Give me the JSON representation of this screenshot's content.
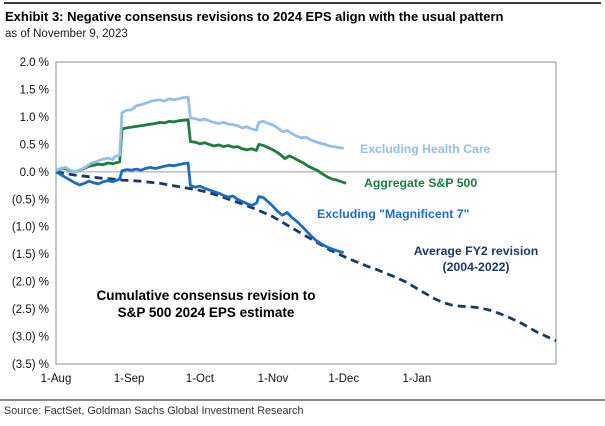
{
  "header": {
    "title": "Exhibit 3: Negative consensus revisions to 2024 EPS align with the usual pattern",
    "subtitle": "as of November 9, 2023"
  },
  "annotation": {
    "line1": "Cumulative consensus revision to",
    "line2": "S&P 500 2024 EPS estimate"
  },
  "legend": {
    "health_care": "Excluding Health Care",
    "aggregate": "Aggregate S&P 500",
    "mag7": "Excluding \"Magnificent 7\"",
    "avg_fy2_line1": "Average FY2 revision",
    "avg_fy2_line2": "(2004-2022)"
  },
  "footer": {
    "source": "Source: FactSet, Goldman Sachs Global Investment Research"
  },
  "colors": {
    "health_care": "#94bfe6",
    "aggregate": "#1e7b3d",
    "mag7": "#1b6cc2",
    "avg_fy2": "#1a3a63",
    "zero_line": "#9d9d9d",
    "plot_border": "#a3a3a3",
    "axis_text": "#111111"
  },
  "chart_data": {
    "type": "line",
    "title": "Cumulative consensus revision to S&P 500 2024 EPS estimate",
    "xlabel": "",
    "ylabel": "%",
    "grid": "zero line only",
    "legend_position": "inline right labels",
    "x_axis": {
      "unit": "days since 1-Aug-2023",
      "range": [
        0,
        212
      ],
      "ticks": [
        {
          "d": 0,
          "label": "1-Aug"
        },
        {
          "d": 31,
          "label": "1-Sep"
        },
        {
          "d": 61,
          "label": "1-Oct"
        },
        {
          "d": 92,
          "label": "1-Nov"
        },
        {
          "d": 122,
          "label": "1-Dec"
        },
        {
          "d": 153,
          "label": "1-Jan"
        }
      ]
    },
    "y_axis": {
      "unit": "%",
      "range": [
        -3.5,
        2.0
      ],
      "ticks": [
        {
          "v": 2.0,
          "label": "2.0 %"
        },
        {
          "v": 1.5,
          "label": "1.5 %"
        },
        {
          "v": 1.0,
          "label": "1.0 %"
        },
        {
          "v": 0.5,
          "label": "0.5 %"
        },
        {
          "v": 0.0,
          "label": "0.0 %"
        },
        {
          "v": -0.5,
          "label": "(0.5) %"
        },
        {
          "v": -1.0,
          "label": "(1.0) %"
        },
        {
          "v": -1.5,
          "label": "(1.5) %"
        },
        {
          "v": -2.0,
          "label": "(2.0) %"
        },
        {
          "v": -2.5,
          "label": "(2.5) %"
        },
        {
          "v": -3.0,
          "label": "(3.0) %"
        },
        {
          "v": -3.5,
          "label": "(3.5) %"
        }
      ]
    },
    "series": [
      {
        "name": "Average FY2 revision (2004-2022)",
        "style": "dashed",
        "color": "#1a3a63",
        "points": [
          [
            0,
            0.0
          ],
          [
            4,
            -0.03
          ],
          [
            8,
            -0.06
          ],
          [
            12,
            -0.08
          ],
          [
            16,
            -0.1
          ],
          [
            20,
            -0.12
          ],
          [
            24,
            -0.13
          ],
          [
            28,
            -0.15
          ],
          [
            32,
            -0.16
          ],
          [
            36,
            -0.17
          ],
          [
            40,
            -0.19
          ],
          [
            44,
            -0.21
          ],
          [
            48,
            -0.24
          ],
          [
            52,
            -0.27
          ],
          [
            56,
            -0.3
          ],
          [
            60,
            -0.33
          ],
          [
            64,
            -0.37
          ],
          [
            68,
            -0.42
          ],
          [
            72,
            -0.48
          ],
          [
            76,
            -0.54
          ],
          [
            80,
            -0.6
          ],
          [
            84,
            -0.67
          ],
          [
            88,
            -0.74
          ],
          [
            92,
            -0.82
          ],
          [
            96,
            -0.92
          ],
          [
            100,
            -1.02
          ],
          [
            104,
            -1.12
          ],
          [
            108,
            -1.22
          ],
          [
            112,
            -1.32
          ],
          [
            116,
            -1.42
          ],
          [
            120,
            -1.5
          ],
          [
            124,
            -1.58
          ],
          [
            128,
            -1.65
          ],
          [
            132,
            -1.72
          ],
          [
            136,
            -1.78
          ],
          [
            140,
            -1.85
          ],
          [
            144,
            -1.92
          ],
          [
            148,
            -2.0
          ],
          [
            152,
            -2.1
          ],
          [
            156,
            -2.2
          ],
          [
            160,
            -2.3
          ],
          [
            164,
            -2.38
          ],
          [
            168,
            -2.43
          ],
          [
            172,
            -2.45
          ],
          [
            176,
            -2.46
          ],
          [
            180,
            -2.48
          ],
          [
            184,
            -2.52
          ],
          [
            188,
            -2.58
          ],
          [
            192,
            -2.65
          ],
          [
            196,
            -2.73
          ],
          [
            200,
            -2.82
          ],
          [
            204,
            -2.92
          ],
          [
            208,
            -3.0
          ],
          [
            212,
            -3.08
          ]
        ]
      },
      {
        "name": "Excluding \"Magnificent 7\"",
        "style": "solid",
        "color": "#1b6cc2",
        "points": [
          [
            0,
            0.0
          ],
          [
            2,
            -0.05
          ],
          [
            4,
            -0.1
          ],
          [
            6,
            -0.15
          ],
          [
            8,
            -0.2
          ],
          [
            10,
            -0.24
          ],
          [
            12,
            -0.21
          ],
          [
            14,
            -0.17
          ],
          [
            16,
            -0.2
          ],
          [
            18,
            -0.22
          ],
          [
            20,
            -0.18
          ],
          [
            22,
            -0.16
          ],
          [
            24,
            -0.18
          ],
          [
            26,
            -0.15
          ],
          [
            27,
            -0.13
          ],
          [
            28,
            0.02
          ],
          [
            30,
            0.04
          ],
          [
            32,
            0.03
          ],
          [
            34,
            0.05
          ],
          [
            36,
            0.03
          ],
          [
            38,
            0.06
          ],
          [
            40,
            0.08
          ],
          [
            42,
            0.06
          ],
          [
            44,
            0.08
          ],
          [
            46,
            0.1
          ],
          [
            48,
            0.12
          ],
          [
            50,
            0.11
          ],
          [
            52,
            0.13
          ],
          [
            54,
            0.15
          ],
          [
            56,
            0.16
          ],
          [
            57,
            -0.25
          ],
          [
            59,
            -0.28
          ],
          [
            61,
            -0.26
          ],
          [
            63,
            -0.3
          ],
          [
            65,
            -0.33
          ],
          [
            67,
            -0.36
          ],
          [
            69,
            -0.39
          ],
          [
            71,
            -0.43
          ],
          [
            73,
            -0.46
          ],
          [
            75,
            -0.44
          ],
          [
            77,
            -0.5
          ],
          [
            79,
            -0.54
          ],
          [
            81,
            -0.58
          ],
          [
            83,
            -0.61
          ],
          [
            85,
            -0.57
          ],
          [
            86,
            -0.45
          ],
          [
            88,
            -0.47
          ],
          [
            90,
            -0.55
          ],
          [
            92,
            -0.63
          ],
          [
            94,
            -0.72
          ],
          [
            96,
            -0.79
          ],
          [
            98,
            -0.74
          ],
          [
            100,
            -0.83
          ],
          [
            102,
            -0.9
          ],
          [
            104,
            -0.98
          ],
          [
            106,
            -1.07
          ],
          [
            108,
            -1.16
          ],
          [
            110,
            -1.24
          ],
          [
            112,
            -1.3
          ],
          [
            114,
            -1.35
          ],
          [
            116,
            -1.39
          ],
          [
            118,
            -1.42
          ],
          [
            120,
            -1.45
          ],
          [
            122,
            -1.47
          ]
        ]
      },
      {
        "name": "Aggregate S&P 500",
        "style": "solid",
        "color": "#1e7b3d",
        "points": [
          [
            0,
            0.03
          ],
          [
            2,
            0.05
          ],
          [
            4,
            0.06
          ],
          [
            6,
            0.02
          ],
          [
            8,
            0.0
          ],
          [
            10,
            0.03
          ],
          [
            12,
            0.06
          ],
          [
            14,
            0.1
          ],
          [
            16,
            0.12
          ],
          [
            18,
            0.14
          ],
          [
            20,
            0.13
          ],
          [
            22,
            0.16
          ],
          [
            24,
            0.15
          ],
          [
            26,
            0.17
          ],
          [
            27,
            0.18
          ],
          [
            28,
            0.78
          ],
          [
            30,
            0.8
          ],
          [
            33,
            0.82
          ],
          [
            36,
            0.84
          ],
          [
            39,
            0.86
          ],
          [
            42,
            0.88
          ],
          [
            44,
            0.9
          ],
          [
            46,
            0.89
          ],
          [
            48,
            0.92
          ],
          [
            50,
            0.91
          ],
          [
            52,
            0.93
          ],
          [
            54,
            0.94
          ],
          [
            56,
            0.95
          ],
          [
            57,
            0.55
          ],
          [
            59,
            0.54
          ],
          [
            61,
            0.51
          ],
          [
            63,
            0.53
          ],
          [
            65,
            0.5
          ],
          [
            67,
            0.47
          ],
          [
            69,
            0.49
          ],
          [
            71,
            0.46
          ],
          [
            73,
            0.48
          ],
          [
            75,
            0.45
          ],
          [
            77,
            0.46
          ],
          [
            79,
            0.42
          ],
          [
            81,
            0.4
          ],
          [
            83,
            0.42
          ],
          [
            85,
            0.39
          ],
          [
            86,
            0.5
          ],
          [
            88,
            0.48
          ],
          [
            90,
            0.44
          ],
          [
            92,
            0.4
          ],
          [
            94,
            0.35
          ],
          [
            96,
            0.28
          ],
          [
            97,
            0.24
          ],
          [
            99,
            0.29
          ],
          [
            101,
            0.25
          ],
          [
            103,
            0.2
          ],
          [
            105,
            0.16
          ],
          [
            107,
            0.1
          ],
          [
            109,
            0.06
          ],
          [
            111,
            0.02
          ],
          [
            113,
            -0.04
          ],
          [
            115,
            -0.09
          ],
          [
            117,
            -0.13
          ],
          [
            119,
            -0.15
          ],
          [
            121,
            -0.18
          ],
          [
            123,
            -0.21
          ]
        ]
      },
      {
        "name": "Excluding Health Care",
        "style": "solid",
        "color": "#94bfe6",
        "points": [
          [
            0,
            0.02
          ],
          [
            2,
            0.06
          ],
          [
            4,
            0.08
          ],
          [
            6,
            0.03
          ],
          [
            8,
            0.0
          ],
          [
            11,
            0.05
          ],
          [
            13,
            0.1
          ],
          [
            15,
            0.16
          ],
          [
            17,
            0.18
          ],
          [
            19,
            0.22
          ],
          [
            22,
            0.25
          ],
          [
            24,
            0.22
          ],
          [
            25,
            0.28
          ],
          [
            27,
            0.3
          ],
          [
            28,
            1.08
          ],
          [
            30,
            1.12
          ],
          [
            32,
            1.13
          ],
          [
            34,
            1.2
          ],
          [
            36,
            1.22
          ],
          [
            38,
            1.25
          ],
          [
            40,
            1.28
          ],
          [
            42,
            1.3
          ],
          [
            44,
            1.31
          ],
          [
            46,
            1.29
          ],
          [
            48,
            1.33
          ],
          [
            50,
            1.31
          ],
          [
            52,
            1.33
          ],
          [
            54,
            1.35
          ],
          [
            56,
            1.36
          ],
          [
            57,
            0.98
          ],
          [
            59,
            0.97
          ],
          [
            61,
            0.94
          ],
          [
            63,
            0.96
          ],
          [
            65,
            0.93
          ],
          [
            67,
            0.9
          ],
          [
            69,
            0.88
          ],
          [
            71,
            0.9
          ],
          [
            73,
            0.87
          ],
          [
            75,
            0.86
          ],
          [
            77,
            0.84
          ],
          [
            79,
            0.8
          ],
          [
            81,
            0.82
          ],
          [
            83,
            0.78
          ],
          [
            85,
            0.76
          ],
          [
            86,
            0.9
          ],
          [
            88,
            0.92
          ],
          [
            90,
            0.88
          ],
          [
            92,
            0.85
          ],
          [
            94,
            0.8
          ],
          [
            96,
            0.73
          ],
          [
            98,
            0.75
          ],
          [
            100,
            0.7
          ],
          [
            102,
            0.65
          ],
          [
            104,
            0.62
          ],
          [
            106,
            0.63
          ],
          [
            108,
            0.58
          ],
          [
            110,
            0.55
          ],
          [
            112,
            0.52
          ],
          [
            114,
            0.5
          ],
          [
            116,
            0.47
          ],
          [
            118,
            0.46
          ],
          [
            120,
            0.44
          ],
          [
            122,
            0.43
          ]
        ]
      }
    ]
  }
}
